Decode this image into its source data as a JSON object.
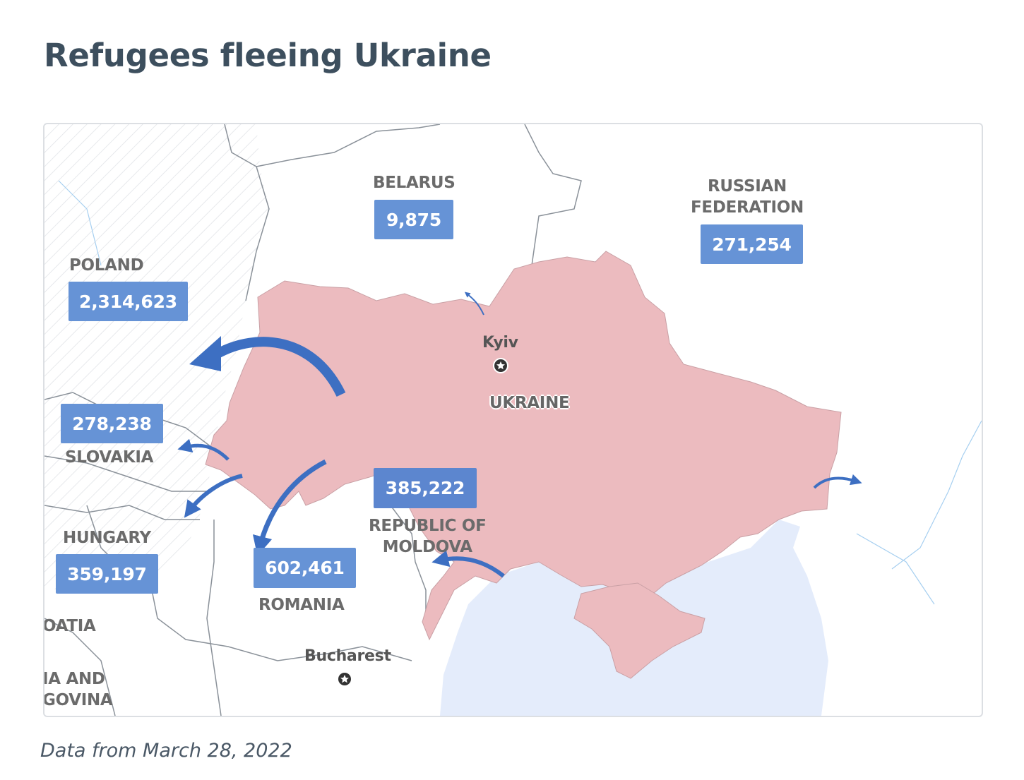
{
  "title": "Refugees fleeing Ukraine",
  "caption": "Data from March 28, 2022",
  "colors": {
    "ukraine_fill": "#ecbbbf",
    "badge": "#6693d6",
    "arrow": "#3d6fc2",
    "sea": "#e4ecfb",
    "title": "#3d4f5e"
  },
  "countries": {
    "belarus": {
      "name": "BELARUS",
      "count": "9,875"
    },
    "russia": {
      "name_line1": "RUSSIAN",
      "name_line2": "FEDERATION",
      "count": "271,254"
    },
    "poland": {
      "name": "POLAND",
      "count": "2,314,623"
    },
    "slovakia": {
      "name": "SLOVAKIA",
      "count": "278,238"
    },
    "hungary": {
      "name": "HUNGARY",
      "count": "359,197"
    },
    "romania": {
      "name": "ROMANIA",
      "count": "602,461"
    },
    "moldova": {
      "name_line1": "REPUBLIC OF",
      "name_line2": "MOLDOVA",
      "count": "385,222"
    },
    "ukraine": {
      "name": "UKRAINE"
    },
    "croatia": {
      "name": "OATIA"
    },
    "bosnia": {
      "name_line1": "IA AND",
      "name_line2": "GOVINA"
    }
  },
  "cities": {
    "kyiv": "Kyiv",
    "bucharest": "Bucharest"
  },
  "icons": [
    "capital-star-icon",
    "refugee-flow-arrow"
  ]
}
